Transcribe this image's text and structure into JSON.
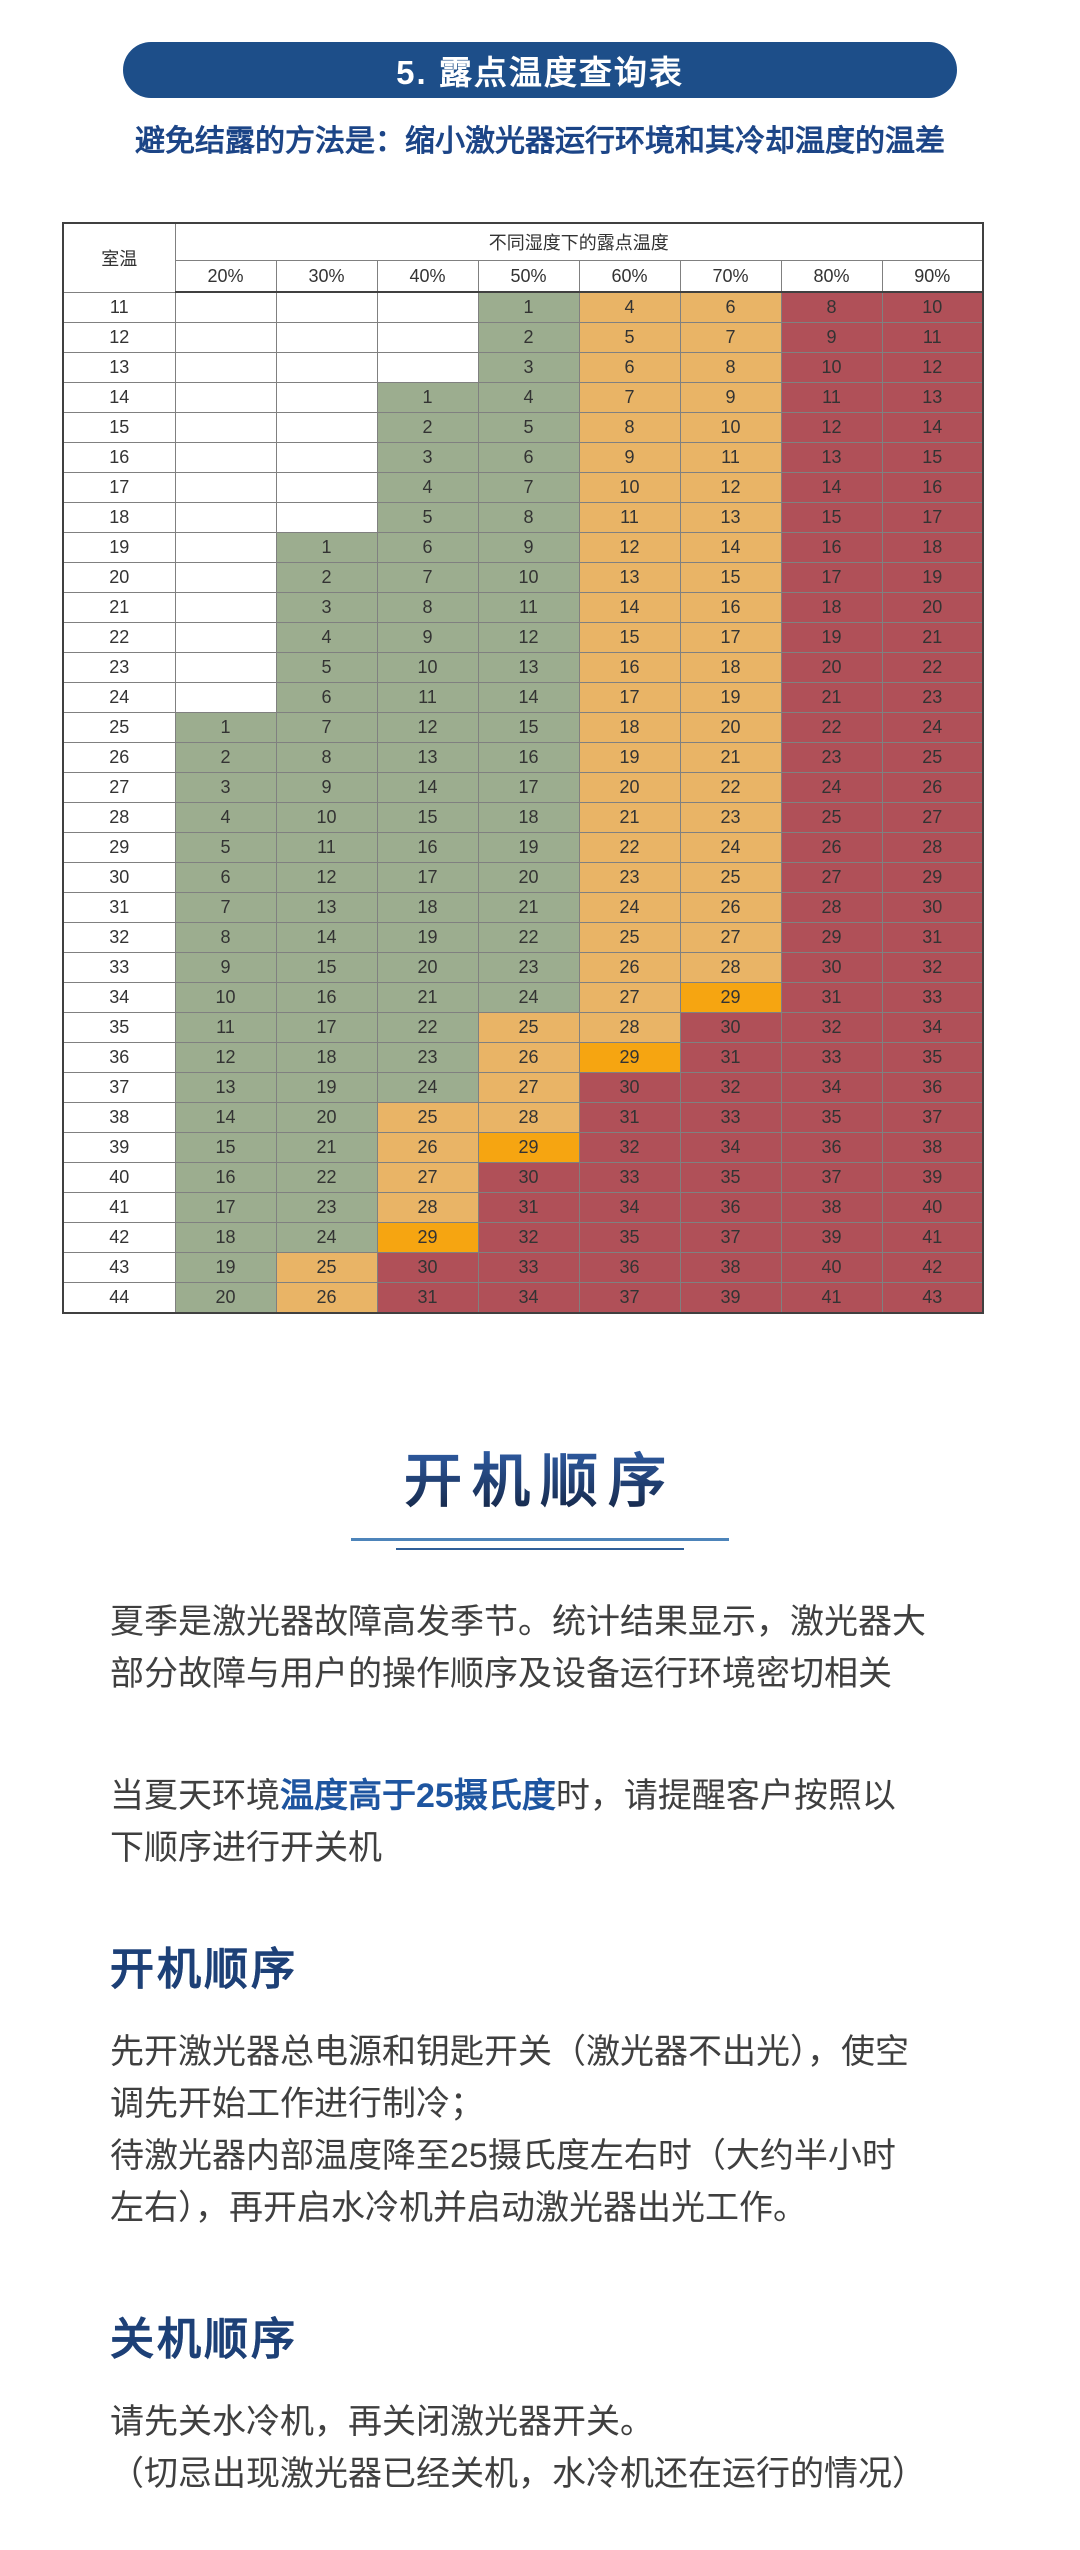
{
  "header": {
    "banner_title": "5. 露点温度查询表",
    "subtitle": "避免结露的方法是：缩小激光器运行环境和其冷却温度的温差",
    "banner_color": "#1d4e89",
    "subtitle_color": "#1c4587"
  },
  "table": {
    "corner_label": "室温",
    "span_header": "不同湿度下的露点温度",
    "humidity_headers": [
      "20%",
      "30%",
      "40%",
      "50%",
      "60%",
      "70%",
      "80%",
      "90%"
    ],
    "palette": {
      "green": "#9cad8f",
      "orange": "#e9b466",
      "highlight_orange": "#f6a511",
      "red": "#b05058",
      "empty": "#ffffff"
    },
    "rows": [
      {
        "temp": "11",
        "v": [
          "",
          "",
          "",
          "1",
          "4",
          "6",
          "8",
          "10"
        ],
        "c": [
          "w",
          "w",
          "w",
          "g",
          "o",
          "o",
          "r",
          "r"
        ]
      },
      {
        "temp": "12",
        "v": [
          "",
          "",
          "",
          "2",
          "5",
          "7",
          "9",
          "11"
        ],
        "c": [
          "w",
          "w",
          "w",
          "g",
          "o",
          "o",
          "r",
          "r"
        ]
      },
      {
        "temp": "13",
        "v": [
          "",
          "",
          "",
          "3",
          "6",
          "8",
          "10",
          "12"
        ],
        "c": [
          "w",
          "w",
          "w",
          "g",
          "o",
          "o",
          "r",
          "r"
        ]
      },
      {
        "temp": "14",
        "v": [
          "",
          "",
          "1",
          "4",
          "7",
          "9",
          "11",
          "13"
        ],
        "c": [
          "w",
          "w",
          "g",
          "g",
          "o",
          "o",
          "r",
          "r"
        ]
      },
      {
        "temp": "15",
        "v": [
          "",
          "",
          "2",
          "5",
          "8",
          "10",
          "12",
          "14"
        ],
        "c": [
          "w",
          "w",
          "g",
          "g",
          "o",
          "o",
          "r",
          "r"
        ]
      },
      {
        "temp": "16",
        "v": [
          "",
          "",
          "3",
          "6",
          "9",
          "11",
          "13",
          "15"
        ],
        "c": [
          "w",
          "w",
          "g",
          "g",
          "o",
          "o",
          "r",
          "r"
        ]
      },
      {
        "temp": "17",
        "v": [
          "",
          "",
          "4",
          "7",
          "10",
          "12",
          "14",
          "16"
        ],
        "c": [
          "w",
          "w",
          "g",
          "g",
          "o",
          "o",
          "r",
          "r"
        ]
      },
      {
        "temp": "18",
        "v": [
          "",
          "",
          "5",
          "8",
          "11",
          "13",
          "15",
          "17"
        ],
        "c": [
          "w",
          "w",
          "g",
          "g",
          "o",
          "o",
          "r",
          "r"
        ]
      },
      {
        "temp": "19",
        "v": [
          "",
          "1",
          "6",
          "9",
          "12",
          "14",
          "16",
          "18"
        ],
        "c": [
          "w",
          "g",
          "g",
          "g",
          "o",
          "o",
          "r",
          "r"
        ]
      },
      {
        "temp": "20",
        "v": [
          "",
          "2",
          "7",
          "10",
          "13",
          "15",
          "17",
          "19"
        ],
        "c": [
          "w",
          "g",
          "g",
          "g",
          "o",
          "o",
          "r",
          "r"
        ]
      },
      {
        "temp": "21",
        "v": [
          "",
          "3",
          "8",
          "11",
          "14",
          "16",
          "18",
          "20"
        ],
        "c": [
          "w",
          "g",
          "g",
          "g",
          "o",
          "o",
          "r",
          "r"
        ]
      },
      {
        "temp": "22",
        "v": [
          "",
          "4",
          "9",
          "12",
          "15",
          "17",
          "19",
          "21"
        ],
        "c": [
          "w",
          "g",
          "g",
          "g",
          "o",
          "o",
          "r",
          "r"
        ]
      },
      {
        "temp": "23",
        "v": [
          "",
          "5",
          "10",
          "13",
          "16",
          "18",
          "20",
          "22"
        ],
        "c": [
          "w",
          "g",
          "g",
          "g",
          "o",
          "o",
          "r",
          "r"
        ]
      },
      {
        "temp": "24",
        "v": [
          "",
          "6",
          "11",
          "14",
          "17",
          "19",
          "21",
          "23"
        ],
        "c": [
          "w",
          "g",
          "g",
          "g",
          "o",
          "o",
          "r",
          "r"
        ]
      },
      {
        "temp": "25",
        "v": [
          "1",
          "7",
          "12",
          "15",
          "18",
          "20",
          "22",
          "24"
        ],
        "c": [
          "g",
          "g",
          "g",
          "g",
          "o",
          "o",
          "r",
          "r"
        ]
      },
      {
        "temp": "26",
        "v": [
          "2",
          "8",
          "13",
          "16",
          "19",
          "21",
          "23",
          "25"
        ],
        "c": [
          "g",
          "g",
          "g",
          "g",
          "o",
          "o",
          "r",
          "r"
        ]
      },
      {
        "temp": "27",
        "v": [
          "3",
          "9",
          "14",
          "17",
          "20",
          "22",
          "24",
          "26"
        ],
        "c": [
          "g",
          "g",
          "g",
          "g",
          "o",
          "o",
          "r",
          "r"
        ]
      },
      {
        "temp": "28",
        "v": [
          "4",
          "10",
          "15",
          "18",
          "21",
          "23",
          "25",
          "27"
        ],
        "c": [
          "g",
          "g",
          "g",
          "g",
          "o",
          "o",
          "r",
          "r"
        ]
      },
      {
        "temp": "29",
        "v": [
          "5",
          "11",
          "16",
          "19",
          "22",
          "24",
          "26",
          "28"
        ],
        "c": [
          "g",
          "g",
          "g",
          "g",
          "o",
          "o",
          "r",
          "r"
        ]
      },
      {
        "temp": "30",
        "v": [
          "6",
          "12",
          "17",
          "20",
          "23",
          "25",
          "27",
          "29"
        ],
        "c": [
          "g",
          "g",
          "g",
          "g",
          "o",
          "o",
          "r",
          "r"
        ]
      },
      {
        "temp": "31",
        "v": [
          "7",
          "13",
          "18",
          "21",
          "24",
          "26",
          "28",
          "30"
        ],
        "c": [
          "g",
          "g",
          "g",
          "g",
          "o",
          "o",
          "r",
          "r"
        ]
      },
      {
        "temp": "32",
        "v": [
          "8",
          "14",
          "19",
          "22",
          "25",
          "27",
          "29",
          "31"
        ],
        "c": [
          "g",
          "g",
          "g",
          "g",
          "o",
          "o",
          "r",
          "r"
        ]
      },
      {
        "temp": "33",
        "v": [
          "9",
          "15",
          "20",
          "23",
          "26",
          "28",
          "30",
          "32"
        ],
        "c": [
          "g",
          "g",
          "g",
          "g",
          "o",
          "o",
          "r",
          "r"
        ]
      },
      {
        "temp": "34",
        "v": [
          "10",
          "16",
          "21",
          "24",
          "27",
          "29",
          "31",
          "33"
        ],
        "c": [
          "g",
          "g",
          "g",
          "g",
          "o",
          "b",
          "r",
          "r"
        ]
      },
      {
        "temp": "35",
        "v": [
          "11",
          "17",
          "22",
          "25",
          "28",
          "30",
          "32",
          "34"
        ],
        "c": [
          "g",
          "g",
          "g",
          "o",
          "o",
          "r",
          "r",
          "r"
        ]
      },
      {
        "temp": "36",
        "v": [
          "12",
          "18",
          "23",
          "26",
          "29",
          "31",
          "33",
          "35"
        ],
        "c": [
          "g",
          "g",
          "g",
          "o",
          "b",
          "r",
          "r",
          "r"
        ]
      },
      {
        "temp": "37",
        "v": [
          "13",
          "19",
          "24",
          "27",
          "30",
          "32",
          "34",
          "36"
        ],
        "c": [
          "g",
          "g",
          "g",
          "o",
          "r",
          "r",
          "r",
          "r"
        ]
      },
      {
        "temp": "38",
        "v": [
          "14",
          "20",
          "25",
          "28",
          "31",
          "33",
          "35",
          "37"
        ],
        "c": [
          "g",
          "g",
          "o",
          "o",
          "r",
          "r",
          "r",
          "r"
        ]
      },
      {
        "temp": "39",
        "v": [
          "15",
          "21",
          "26",
          "29",
          "32",
          "34",
          "36",
          "38"
        ],
        "c": [
          "g",
          "g",
          "o",
          "b",
          "r",
          "r",
          "r",
          "r"
        ]
      },
      {
        "temp": "40",
        "v": [
          "16",
          "22",
          "27",
          "30",
          "33",
          "35",
          "37",
          "39"
        ],
        "c": [
          "g",
          "g",
          "o",
          "r",
          "r",
          "r",
          "r",
          "r"
        ]
      },
      {
        "temp": "41",
        "v": [
          "17",
          "23",
          "28",
          "31",
          "34",
          "36",
          "38",
          "40"
        ],
        "c": [
          "g",
          "g",
          "o",
          "r",
          "r",
          "r",
          "r",
          "r"
        ]
      },
      {
        "temp": "42",
        "v": [
          "18",
          "24",
          "29",
          "32",
          "35",
          "37",
          "39",
          "41"
        ],
        "c": [
          "g",
          "g",
          "b",
          "r",
          "r",
          "r",
          "r",
          "r"
        ]
      },
      {
        "temp": "43",
        "v": [
          "19",
          "25",
          "30",
          "33",
          "36",
          "38",
          "40",
          "42"
        ],
        "c": [
          "g",
          "o",
          "r",
          "r",
          "r",
          "r",
          "r",
          "r"
        ]
      },
      {
        "temp": "44",
        "v": [
          "20",
          "26",
          "31",
          "34",
          "37",
          "39",
          "41",
          "43"
        ],
        "c": [
          "g",
          "o",
          "r",
          "r",
          "r",
          "r",
          "r",
          "r"
        ]
      }
    ]
  },
  "main": {
    "big_title": "开机顺序",
    "para1": "夏季是激光器故障高发季节。统计结果显示，激光器大\n部分故障与用户的操作顺序及设备运行环境密切相关",
    "para2_prefix": "当夏天环境",
    "para2_highlight": "温度高于25摄氏度",
    "para2_suffix": "时，请提醒客户按照以\n下顺序进行开关机",
    "startup": {
      "title": "开机顺序",
      "body": "先开激光器总电源和钥匙开关（激光器不出光），使空\n调先开始工作进行制冷；\n待激光器内部温度降至25摄氏度左右时（大约半小时\n左右），再开启水冷机并启动激光器出光工作。"
    },
    "shutdown": {
      "title": "关机顺序",
      "body": "请先关水冷机，再关闭激光器开关。\n（切忌出现激光器已经关机，水冷机还在运行的情况）"
    },
    "text_color": "#3f3f3f",
    "heading_gradient": [
      "#3568b8",
      "#16294b"
    ],
    "underline_colors": [
      "#4d84ba",
      "#2f5f99"
    ]
  }
}
